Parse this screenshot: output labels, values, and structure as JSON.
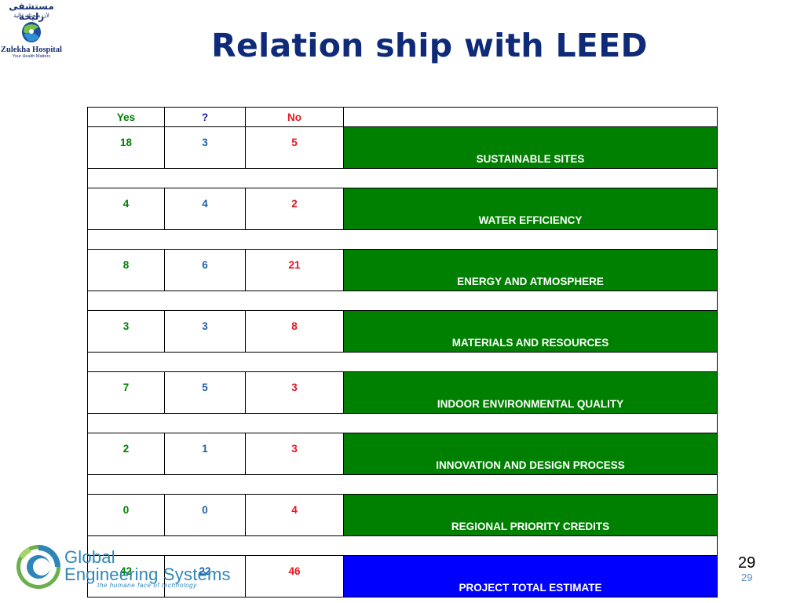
{
  "header": {
    "hospital_arabic": "مستشفى زليخة",
    "hospital_arabic_tagline": "لأن صحتك غالية",
    "hospital_name": "Zulekha Hospital",
    "hospital_tagline": "Your Health Matters"
  },
  "title": "Relation ship with LEED",
  "table": {
    "headers": {
      "yes": "Yes",
      "maybe": "?",
      "no": "No",
      "category": ""
    },
    "rows": [
      {
        "yes": "18",
        "maybe": "3",
        "no": "5",
        "category": "SUSTAINABLE SITES"
      },
      {
        "yes": "4",
        "maybe": "4",
        "no": "2",
        "category": "WATER EFFICIENCY"
      },
      {
        "yes": "8",
        "maybe": "6",
        "no": "21",
        "category": "ENERGY AND ATMOSPHERE"
      },
      {
        "yes": "3",
        "maybe": "3",
        "no": "8",
        "category": "MATERIALS AND RESOURCES"
      },
      {
        "yes": "7",
        "maybe": "5",
        "no": "3",
        "category": "INDOOR ENVIRONMENTAL QUALITY"
      },
      {
        "yes": "2",
        "maybe": "1",
        "no": "3",
        "category": "INNOVATION AND DESIGN PROCESS"
      },
      {
        "yes": "0",
        "maybe": "0",
        "no": "4",
        "category": "REGIONAL PRIORITY CREDITS"
      }
    ],
    "total": {
      "yes": "42",
      "maybe": "22",
      "no": "46",
      "category": "PROJECT TOTAL ESTIMATE"
    }
  },
  "colors": {
    "category_fill": "#008000",
    "total_fill": "#0000ff",
    "yes_text": "#008000",
    "maybe_text": "#1f5fa8",
    "no_text": "#e8141e",
    "title_text": "#0e2a78"
  },
  "footer": {
    "company_line1": "Global",
    "company_line2": "Engineering Systems",
    "company_tagline": "the humane face of technology",
    "page_number": "29",
    "page_number_small": "29"
  }
}
